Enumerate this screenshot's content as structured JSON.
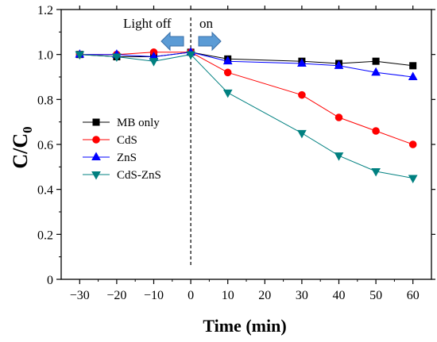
{
  "chart_data": {
    "type": "line",
    "title": "",
    "xlabel": "Time (min)",
    "ylabel_main": "C/C",
    "ylabel_sub": "0",
    "xlim": [
      -35,
      65
    ],
    "ylim": [
      0,
      1.2
    ],
    "x_ticks": [
      -30,
      -20,
      -10,
      0,
      10,
      20,
      30,
      40,
      50,
      60
    ],
    "x_tick_labels": [
      "−30",
      "−20",
      "−10",
      "0",
      "10",
      "20",
      "30",
      "40",
      "50",
      "60"
    ],
    "y_ticks": [
      0,
      0.2,
      0.4,
      0.6,
      0.8,
      1.0,
      1.2
    ],
    "y_tick_labels": [
      "0",
      "0.2",
      "0.4",
      "0.6",
      "0.8",
      "1.0",
      "1.2"
    ],
    "grid": false,
    "legend_position": "left",
    "annotations": {
      "light_off": "Light off",
      "light_on": "on",
      "divider_x": 0
    },
    "series": [
      {
        "name": "MB only",
        "color": "#000000",
        "marker": "square",
        "x": [
          -30,
          -20,
          -10,
          0,
          10,
          30,
          40,
          50,
          60
        ],
        "y": [
          1.0,
          0.99,
          0.99,
          1.01,
          0.98,
          0.97,
          0.96,
          0.97,
          0.95
        ]
      },
      {
        "name": "CdS",
        "color": "#ff0000",
        "marker": "circle",
        "x": [
          -30,
          -20,
          -10,
          0,
          10,
          30,
          40,
          50,
          60
        ],
        "y": [
          1.0,
          1.0,
          1.01,
          1.01,
          0.92,
          0.82,
          0.72,
          0.66,
          0.6
        ]
      },
      {
        "name": "ZnS",
        "color": "#0000ff",
        "marker": "triangle-up",
        "x": [
          -30,
          -20,
          -10,
          0,
          10,
          30,
          40,
          50,
          60
        ],
        "y": [
          1.0,
          1.0,
          0.99,
          1.01,
          0.97,
          0.96,
          0.95,
          0.92,
          0.9
        ]
      },
      {
        "name": "CdS-ZnS",
        "color": "#008080",
        "marker": "triangle-down",
        "x": [
          -30,
          -20,
          -10,
          0,
          10,
          30,
          40,
          50,
          60
        ],
        "y": [
          1.0,
          0.99,
          0.97,
          1.0,
          0.83,
          0.65,
          0.55,
          0.48,
          0.45
        ]
      }
    ]
  }
}
